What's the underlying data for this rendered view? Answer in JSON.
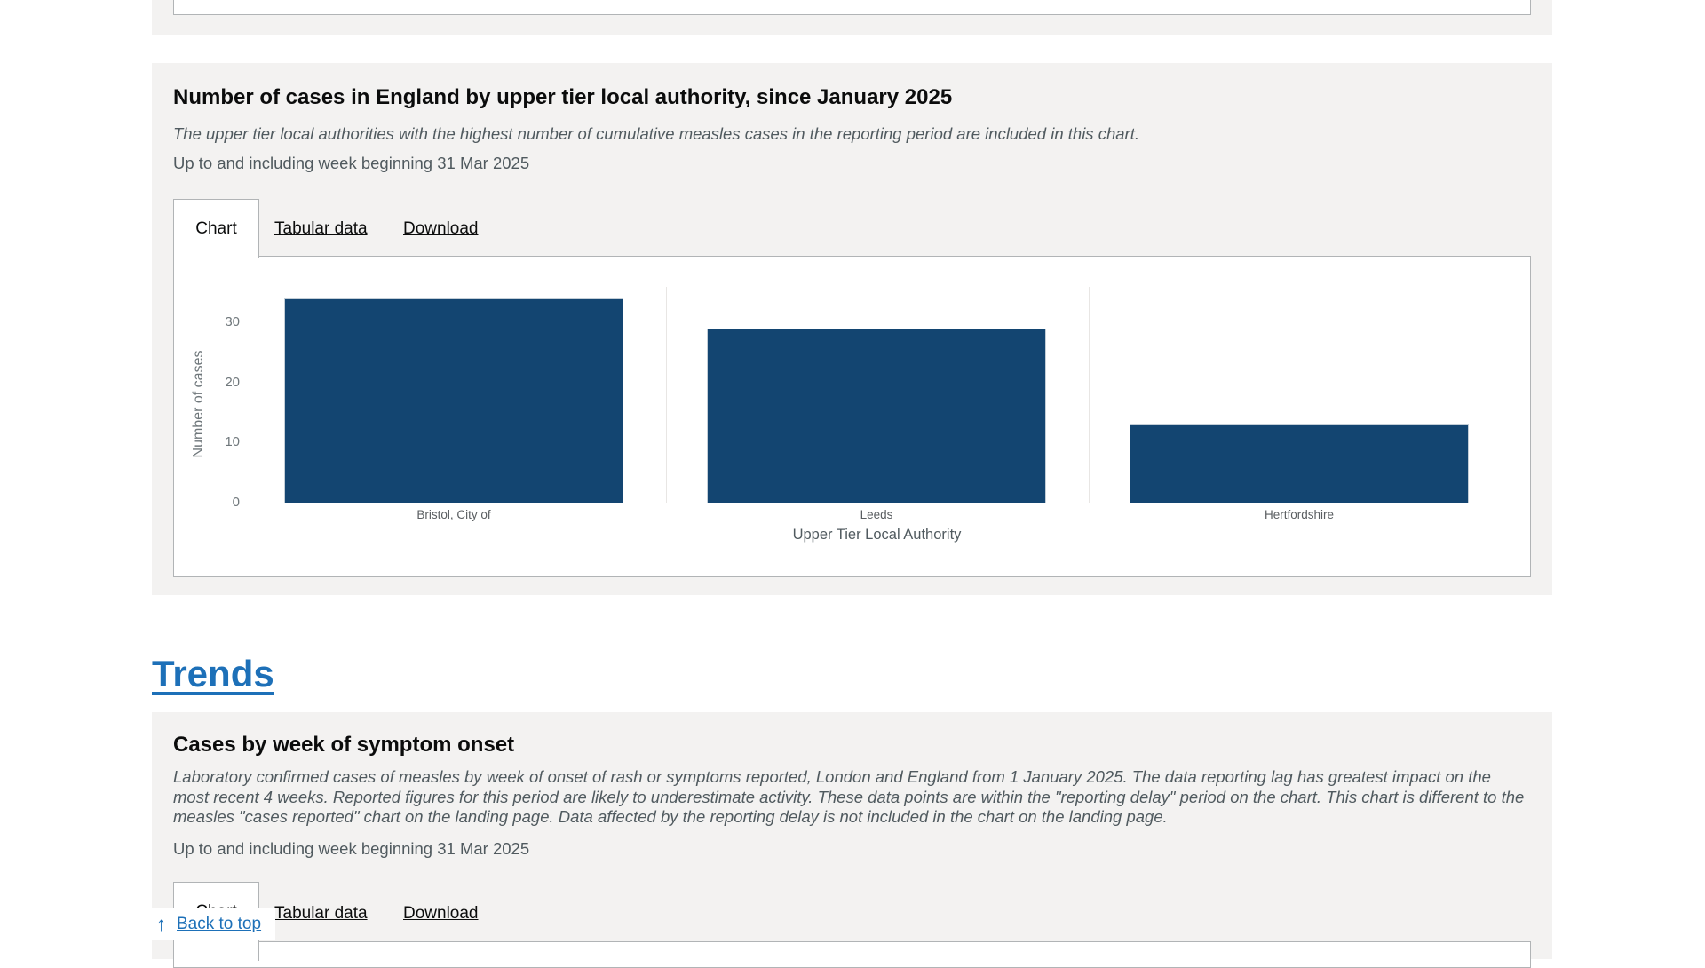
{
  "colors": {
    "accent_link": "#1d70b8",
    "bar": "#134571",
    "card_background": "#f3f2f1",
    "panel_border": "#b1b4b6",
    "heading_text": "#0b0c0c",
    "secondary_text": "#505a5f"
  },
  "utla_section": {
    "title": "Number of cases in England by upper tier local authority, since January 2025",
    "description": "The upper tier local authorities with the highest number of cumulative measles cases in the reporting period are included in this chart.",
    "period": "Up to and including week beginning 31 Mar 2025",
    "tabs": [
      {
        "label": "Chart",
        "active": true
      },
      {
        "label": "Tabular data",
        "active": false
      },
      {
        "label": "Download",
        "active": false
      }
    ]
  },
  "trends_section": {
    "heading": "Trends"
  },
  "onset_section": {
    "title": "Cases by week of symptom onset",
    "description": "Laboratory confirmed cases of measles by week of onset of rash or symptoms reported, London and England from 1 January 2025. The data reporting lag has greatest impact on the most recent 4 weeks. Reported figures for this period are likely to underestimate activity. These data points are within the \"reporting delay\" period on the chart. This chart is different to the measles \"cases reported\" chart on the landing page. Data affected by the reporting delay is not included in the chart on the landing page.",
    "period": "Up to and including week beginning 31 Mar 2025",
    "tabs": [
      {
        "label": "Chart",
        "active": true
      },
      {
        "label": "Tabular data",
        "active": false
      },
      {
        "label": "Download",
        "active": false
      }
    ]
  },
  "back_to_top": {
    "label": "Back to top",
    "icon": "up-arrow"
  },
  "chart_data": {
    "type": "bar",
    "categories": [
      "Bristol, City of",
      "Leeds",
      "Hertfordshire"
    ],
    "values": [
      34,
      29,
      13
    ],
    "title": "Number of cases in England by upper tier local authority, since January 2025",
    "xlabel": "Upper Tier Local Authority",
    "ylabel": "Number of cases",
    "yticks": [
      0,
      10,
      20,
      30
    ],
    "ylim": [
      0,
      36
    ],
    "bar_color": "#134571",
    "legend": "none",
    "grid": "vertical category separator lines only"
  }
}
